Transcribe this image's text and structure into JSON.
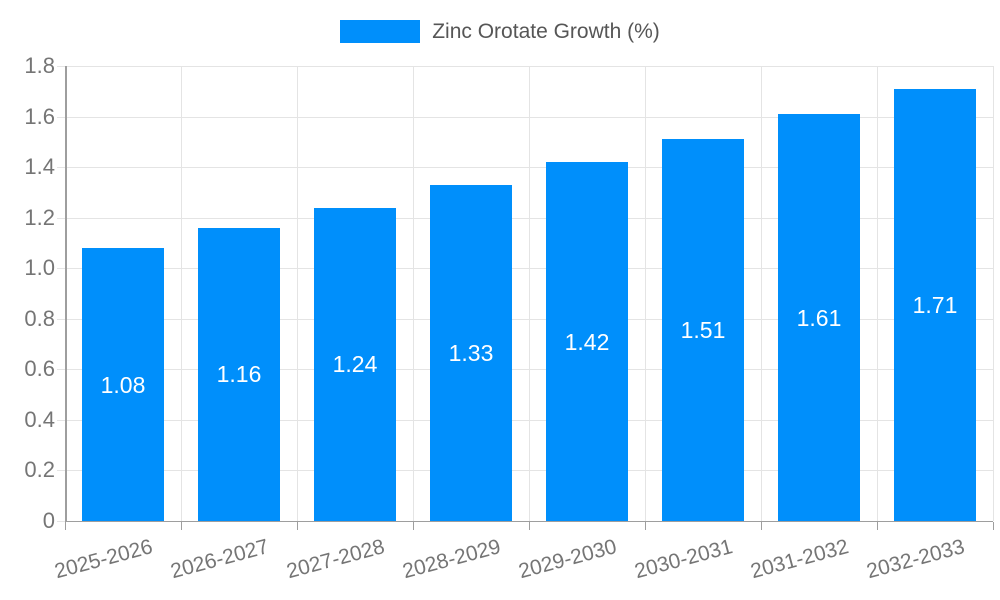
{
  "legend": {
    "label": "Zinc Orotate Growth (%)"
  },
  "colors": {
    "bar": "#008FFB",
    "grid": "#e4e4e4",
    "axis": "#9e9e9e",
    "tick_label": "#757575",
    "legend_text": "#565656",
    "value_label": "#ffffff",
    "background": "#ffffff"
  },
  "chart_data": {
    "type": "bar",
    "title": "Zinc Orotate Growth (%)",
    "categories": [
      "2025-2026",
      "2026-2027",
      "2027-2028",
      "2028-2029",
      "2029-2030",
      "2030-2031",
      "2031-2032",
      "2032-2033"
    ],
    "values": [
      1.08,
      1.16,
      1.24,
      1.33,
      1.42,
      1.51,
      1.61,
      1.71
    ],
    "value_labels": [
      "1.08",
      "1.16",
      "1.24",
      "1.33",
      "1.42",
      "1.51",
      "1.61",
      "1.71"
    ],
    "series_name": "Zinc Orotate Growth (%)",
    "xlabel": "",
    "ylabel": "",
    "ylim": [
      0,
      1.8
    ],
    "ytick_values": [
      0,
      0.2,
      0.4,
      0.6,
      0.8,
      1.0,
      1.2,
      1.4,
      1.6,
      1.8
    ],
    "ytick_labels": [
      "0",
      "0.2",
      "0.4",
      "0.6",
      "0.8",
      "1.0",
      "1.2",
      "1.4",
      "1.6",
      "1.8"
    ],
    "grid": true,
    "legend_position": "top",
    "value_label_position": "middle-of-bar",
    "xtick_rotation_deg": -15
  }
}
